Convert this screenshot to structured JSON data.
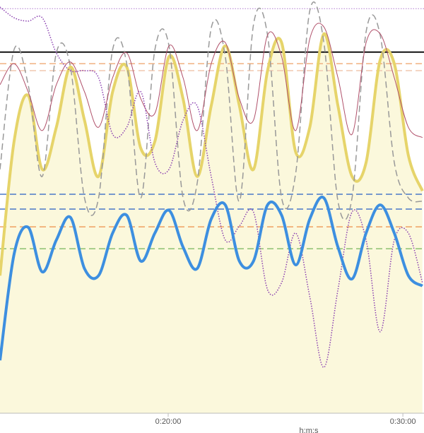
{
  "chart_data": {
    "type": "line",
    "x_label": "h:m:s",
    "xlim": [
      770,
      1854
    ],
    "xticks": [
      {
        "value": 1200,
        "label": "0:20:00"
      },
      {
        "value": 1800,
        "label": "0:30:00"
      }
    ],
    "ylim": [
      0,
      100
    ],
    "x": [
      770,
      806,
      842,
      878,
      914,
      950,
      986,
      1022,
      1058,
      1094,
      1130,
      1166,
      1202,
      1238,
      1274,
      1310,
      1346,
      1382,
      1418,
      1454,
      1490,
      1526,
      1562,
      1598,
      1634,
      1670,
      1706,
      1742,
      1778,
      1814,
      1850
    ],
    "series": [
      {
        "color": "#e6d46a",
        "line_width": 4,
        "dash": "solid",
        "fill": "#fbf8dc",
        "values": [
          33.3,
          65.8,
          76.9,
          59,
          69.2,
          83.8,
          70.9,
          57.3,
          77.8,
          83.8,
          64.1,
          65.8,
          86.3,
          76.1,
          57.3,
          74.4,
          88.9,
          74.4,
          59,
          82.9,
          89.7,
          63.2,
          69.2,
          91.8,
          74.4,
          57.3,
          60.7,
          85.5,
          84.6,
          62.4,
          53.8
        ]
      },
      {
        "color": "#999999",
        "line_width": 1.5,
        "dash": "dashed",
        "values": [
          59,
          88,
          79.5,
          57.3,
          87.2,
          83.8,
          52.1,
          52.1,
          88,
          84.6,
          52.1,
          88,
          88.9,
          52.1,
          55.6,
          93.2,
          86.3,
          51.3,
          94,
          91.5,
          52.1,
          58.1,
          97.4,
          89.7,
          51.3,
          52.1,
          92.3,
          91.5,
          60.7,
          52.1,
          51.3
        ]
      },
      {
        "color": "#b0506a",
        "line_width": 1,
        "dash": "solid",
        "values": [
          79.5,
          84.6,
          77.8,
          68.4,
          79.5,
          85,
          77.8,
          69.2,
          81.2,
          87.2,
          76.1,
          72.6,
          88.9,
          81.2,
          68.4,
          84.6,
          89.7,
          76.1,
          70.9,
          91.5,
          86.3,
          68.4,
          90.6,
          93.5,
          81.2,
          67.5,
          89.7,
          91.8,
          81.2,
          69.2,
          66.7
        ]
      },
      {
        "color": "#8a3fb0",
        "line_width": 1.5,
        "dash": "dotted",
        "values": [
          98.3,
          95.7,
          94.9,
          95.7,
          87.2,
          82.9,
          82.9,
          81.2,
          67.5,
          69.2,
          77.8,
          60.7,
          59,
          70.9,
          74.4,
          57.3,
          41.9,
          45.3,
          48.7,
          29.9,
          31.6,
          43.6,
          28.2,
          11.1,
          29.9,
          48.7,
          41.9,
          19.7,
          41.9,
          43.6,
          31.6
        ]
      },
      {
        "color": "#3d8fe0",
        "line_width": 4,
        "dash": "solid",
        "values": [
          12.8,
          38.5,
          45,
          34.2,
          41.9,
          47.4,
          35,
          33.3,
          43.6,
          47.9,
          36.8,
          43.6,
          49.1,
          40.2,
          35,
          47,
          50.4,
          36.8,
          36.8,
          50.4,
          47.9,
          35.9,
          47,
          52.1,
          40.2,
          32.5,
          43.6,
          50.4,
          43.6,
          33.3,
          30.8
        ]
      }
    ],
    "reference_lines": [
      {
        "value": 97.9,
        "color": "#b07ad0",
        "dash": "dotted",
        "width": 1
      },
      {
        "value": 87.4,
        "color": "#111111",
        "dash": "solid",
        "width": 2
      },
      {
        "value": 84.6,
        "color": "#f0b080",
        "dash": "dashed",
        "width": 1.5
      },
      {
        "value": 82.9,
        "color": "#f0c8b0",
        "dash": "dashed",
        "width": 1.5
      },
      {
        "value": 53,
        "color": "#4a78c8",
        "dash": "dashed",
        "width": 1.5
      },
      {
        "value": 49.4,
        "color": "#4a78c8",
        "dash": "dashed",
        "width": 1.5
      },
      {
        "value": 45.1,
        "color": "#f0a060",
        "dash": "dashed",
        "width": 1.5
      },
      {
        "value": 39.8,
        "color": "#8cc070",
        "dash": "dashed",
        "width": 1.5
      }
    ]
  }
}
